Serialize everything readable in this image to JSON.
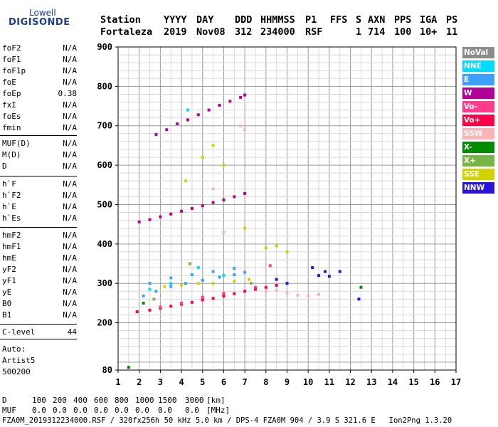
{
  "logo": {
    "line1": "Lowell",
    "line2": "DIGISONDE"
  },
  "header": {
    "labels": [
      "Station",
      "YYYY",
      "DAY",
      "DDD",
      "HHMMSS",
      "P1",
      "FFS",
      "S",
      "AXN",
      "PPS",
      "IGA",
      "PS"
    ],
    "values": [
      "Fortaleza",
      "2019",
      "Nov08",
      "312",
      "234000",
      "RSF",
      "",
      "1",
      "714",
      "100",
      "10+",
      "11"
    ]
  },
  "params_group1": [
    {
      "name": "foF2",
      "value": "N/A"
    },
    {
      "name": "foF1",
      "value": "N/A"
    },
    {
      "name": "foF1p",
      "value": "N/A"
    },
    {
      "name": "foE",
      "value": "N/A"
    },
    {
      "name": "foEp",
      "value": "0.38"
    },
    {
      "name": "fxI",
      "value": "N/A"
    },
    {
      "name": "foEs",
      "value": "N/A"
    },
    {
      "name": "fmin",
      "value": "N/A"
    }
  ],
  "params_group2": [
    {
      "name": "MUF(D)",
      "value": "N/A"
    },
    {
      "name": "M(D)",
      "value": "N/A"
    },
    {
      "name": "D",
      "value": "N/A"
    }
  ],
  "params_group3": [
    {
      "name": "h`F",
      "value": "N/A"
    },
    {
      "name": "h`F2",
      "value": "N/A"
    },
    {
      "name": "h`E",
      "value": "N/A"
    },
    {
      "name": "h`Es",
      "value": "N/A"
    }
  ],
  "params_group4": [
    {
      "name": "hmF2",
      "value": "N/A"
    },
    {
      "name": "hmF1",
      "value": "N/A"
    },
    {
      "name": "hmE",
      "value": "N/A"
    },
    {
      "name": "yF2",
      "value": "N/A"
    },
    {
      "name": "yF1",
      "value": "N/A"
    },
    {
      "name": "yE",
      "value": "N/A"
    },
    {
      "name": "B0",
      "value": "N/A"
    },
    {
      "name": "B1",
      "value": "N/A"
    }
  ],
  "clevel": {
    "name": "C-level",
    "value": "44"
  },
  "auto": [
    "Auto:",
    "Artist5",
    "500200"
  ],
  "legend": [
    {
      "label": "NoVal",
      "color": "#8c8c8c"
    },
    {
      "label": "NNE",
      "color": "#00dcff"
    },
    {
      "label": "E",
      "color": "#3ca0ff"
    },
    {
      "label": "W",
      "color": "#b4009b"
    },
    {
      "label": "Vo-",
      "color": "#ff3c8c"
    },
    {
      "label": "Vo+",
      "color": "#ff0046"
    },
    {
      "label": "SSW",
      "color": "#fab4b4"
    },
    {
      "label": "X-",
      "color": "#008c00"
    },
    {
      "label": "X+",
      "color": "#78b446"
    },
    {
      "label": "SSE",
      "color": "#d2d200"
    },
    {
      "label": "NNW",
      "color": "#2814dc"
    }
  ],
  "bottom_table": {
    "row1_label": "D",
    "row1_values": [
      "100",
      "200",
      "400",
      "600",
      "800",
      "1000",
      "1500",
      "3000"
    ],
    "row1_unit": "[km]",
    "row2_label": "MUF",
    "row2_values": [
      "0.0",
      "0.0",
      "0.0",
      "0.0",
      "0.0",
      "0.0",
      "0.0",
      "0.0"
    ],
    "row2_unit": "[MHz]"
  },
  "footer": "FZA0M_2019312234000.RSF / 320fx256h 50 kHz 5.0 km / DPS-4 FZA0M 904 / 3.9 S 321.6 E   Ion2Png 1.3.20",
  "chart_data": {
    "type": "scatter",
    "title": "",
    "xlabel": "",
    "ylabel": "",
    "xlim": [
      1,
      17
    ],
    "ylim": [
      80,
      900
    ],
    "x_ticks": [
      1,
      2,
      3,
      4,
      5,
      6,
      7,
      8,
      9,
      10,
      11,
      12,
      13,
      14,
      15,
      16,
      17
    ],
    "y_ticks": [
      80,
      200,
      300,
      400,
      500,
      600,
      700,
      800,
      900
    ],
    "grid": true,
    "series": [
      {
        "name": "W",
        "color": "#b4009b",
        "points": [
          [
            2.0,
            456
          ],
          [
            2.5,
            462
          ],
          [
            3.0,
            469
          ],
          [
            3.5,
            476
          ],
          [
            4.0,
            483
          ],
          [
            4.5,
            490
          ],
          [
            5.0,
            497
          ],
          [
            5.5,
            505
          ],
          [
            6.0,
            512
          ],
          [
            6.5,
            520
          ],
          [
            7.0,
            528
          ],
          [
            2.8,
            678
          ],
          [
            3.3,
            690
          ],
          [
            3.8,
            705
          ],
          [
            4.3,
            715
          ],
          [
            4.8,
            728
          ],
          [
            5.3,
            740
          ],
          [
            5.8,
            752
          ],
          [
            6.3,
            762
          ],
          [
            6.8,
            772
          ],
          [
            7.0,
            778
          ]
        ]
      },
      {
        "name": "Vo+",
        "color": "#ff0046",
        "points": [
          [
            1.9,
            228
          ],
          [
            2.5,
            232
          ],
          [
            3.0,
            237
          ],
          [
            3.5,
            242
          ],
          [
            4.0,
            247
          ],
          [
            4.5,
            252
          ],
          [
            5.0,
            258
          ],
          [
            5.5,
            262
          ],
          [
            6.0,
            268
          ],
          [
            6.5,
            274
          ],
          [
            7.0,
            280
          ],
          [
            7.5,
            285
          ],
          [
            8.0,
            290
          ],
          [
            8.5,
            295
          ]
        ]
      },
      {
        "name": "E",
        "color": "#3ca0ff",
        "points": [
          [
            2.2,
            268
          ],
          [
            2.8,
            280
          ],
          [
            3.5,
            292
          ],
          [
            4.2,
            300
          ],
          [
            5.0,
            308
          ],
          [
            5.8,
            316
          ],
          [
            6.5,
            322
          ],
          [
            7.0,
            328
          ],
          [
            2.5,
            300
          ],
          [
            3.5,
            314
          ],
          [
            4.5,
            322
          ],
          [
            5.5,
            330
          ],
          [
            6.5,
            338
          ]
        ]
      },
      {
        "name": "SSE",
        "color": "#d2d200",
        "points": [
          [
            3.2,
            292
          ],
          [
            4.0,
            296
          ],
          [
            4.8,
            300
          ],
          [
            5.5,
            300
          ],
          [
            6.5,
            306
          ],
          [
            7.2,
            310
          ],
          [
            8.0,
            390
          ],
          [
            8.5,
            395
          ],
          [
            9.0,
            380
          ],
          [
            5.0,
            620
          ],
          [
            5.5,
            650
          ],
          [
            6.0,
            600
          ],
          [
            4.2,
            560
          ],
          [
            7.0,
            440
          ]
        ]
      },
      {
        "name": "NNW",
        "color": "#2814dc",
        "points": [
          [
            10.5,
            320
          ],
          [
            10.8,
            330
          ],
          [
            11.0,
            318
          ],
          [
            10.2,
            340
          ],
          [
            9.0,
            300
          ],
          [
            8.5,
            310
          ],
          [
            11.5,
            330
          ],
          [
            12.4,
            260
          ]
        ]
      },
      {
        "name": "SSW",
        "color": "#fab4b4",
        "points": [
          [
            8.0,
            280
          ],
          [
            8.5,
            282
          ],
          [
            9.0,
            276
          ],
          [
            9.5,
            270
          ],
          [
            10.0,
            268
          ],
          [
            10.5,
            272
          ],
          [
            6.8,
            700
          ],
          [
            7.0,
            690
          ],
          [
            5.5,
            540
          ],
          [
            6.0,
            430
          ]
        ]
      },
      {
        "name": "NNE",
        "color": "#00dcff",
        "points": [
          [
            2.5,
            285
          ],
          [
            3.5,
            300
          ],
          [
            4.8,
            340
          ],
          [
            4.3,
            740
          ],
          [
            6.0,
            320
          ]
        ]
      },
      {
        "name": "Vo-",
        "color": "#ff3c8c",
        "points": [
          [
            3.0,
            240
          ],
          [
            4.0,
            250
          ],
          [
            5.0,
            265
          ],
          [
            6.0,
            275
          ],
          [
            7.5,
            290
          ],
          [
            8.2,
            345
          ]
        ]
      },
      {
        "name": "X-",
        "color": "#008c00",
        "points": [
          [
            1.5,
            87
          ],
          [
            2.2,
            250
          ],
          [
            12.5,
            290
          ]
        ]
      },
      {
        "name": "X+",
        "color": "#78b446",
        "points": [
          [
            2.7,
            260
          ],
          [
            4.4,
            350
          ],
          [
            7.3,
            300
          ]
        ]
      }
    ]
  }
}
